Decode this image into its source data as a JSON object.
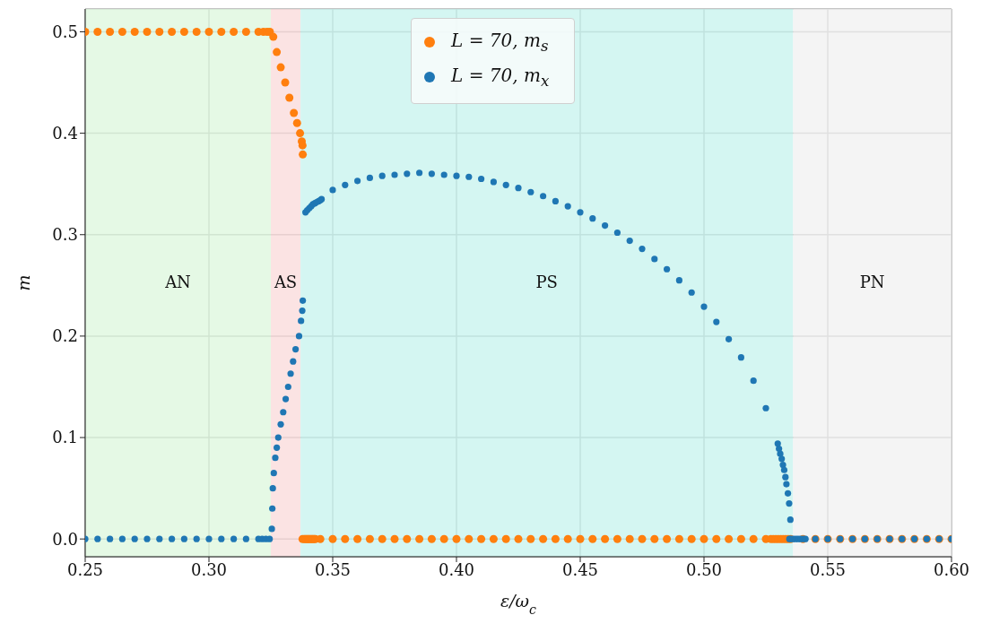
{
  "chart_data": {
    "type": "scatter",
    "xlabel": "ε/ω$_{c}$",
    "ylabel": "m",
    "xlim": [
      0.25,
      0.6
    ],
    "ylim": [
      -0.0175,
      0.5225
    ],
    "xticks": [
      {
        "value": 0.25,
        "label": "0.25"
      },
      {
        "value": 0.3,
        "label": "0.30"
      },
      {
        "value": 0.35,
        "label": "0.35"
      },
      {
        "value": 0.4,
        "label": "0.40"
      },
      {
        "value": 0.45,
        "label": "0.45"
      },
      {
        "value": 0.5,
        "label": "0.50"
      },
      {
        "value": 0.55,
        "label": "0.55"
      },
      {
        "value": 0.6,
        "label": "0.60"
      }
    ],
    "yticks": [
      {
        "value": 0,
        "label": "0.0"
      },
      {
        "value": 0.1,
        "label": "0.1"
      },
      {
        "value": 0.2,
        "label": "0.2"
      },
      {
        "value": 0.3,
        "label": "0.3"
      },
      {
        "value": 0.4,
        "label": "0.4"
      },
      {
        "value": 0.5,
        "label": "0.5"
      }
    ],
    "grid": true,
    "legend": "top",
    "marker": "circle",
    "bands": [
      {
        "axis": "x",
        "from": 0.25,
        "to": 0.325,
        "label": "AN",
        "color": "#dcf7dc"
      },
      {
        "axis": "x",
        "from": 0.325,
        "to": 0.337,
        "label": "AS",
        "color": "#f9d9d9"
      },
      {
        "axis": "x",
        "from": 0.337,
        "to": 0.536,
        "label": "PS",
        "color": "#c6f3ee"
      },
      {
        "axis": "x",
        "from": 0.536,
        "to": 0.6,
        "label": "PN",
        "color": "#f0f0f0"
      }
    ],
    "series": [
      {
        "name": "L = 70, m$_{s}$",
        "color": "#ff7f0e",
        "x": [
          0.25,
          0.255,
          0.26,
          0.265,
          0.27,
          0.275,
          0.28,
          0.285,
          0.29,
          0.295,
          0.3,
          0.305,
          0.31,
          0.315,
          0.32,
          0.322,
          0.3235,
          0.3246,
          0.326,
          0.3274,
          0.329,
          0.3308,
          0.3325,
          0.3343,
          0.3356,
          0.3368,
          0.3375,
          0.3378,
          0.3379,
          0.3378,
          0.3385,
          0.339,
          0.3395,
          0.34,
          0.3405,
          0.341,
          0.3415,
          0.342,
          0.3425,
          0.343,
          0.345,
          0.35,
          0.355,
          0.36,
          0.365,
          0.37,
          0.375,
          0.38,
          0.385,
          0.39,
          0.395,
          0.4,
          0.405,
          0.41,
          0.415,
          0.42,
          0.425,
          0.43,
          0.435,
          0.44,
          0.445,
          0.45,
          0.455,
          0.46,
          0.465,
          0.47,
          0.475,
          0.48,
          0.485,
          0.49,
          0.495,
          0.5,
          0.505,
          0.51,
          0.515,
          0.52,
          0.525,
          0.527,
          0.528,
          0.529,
          0.53,
          0.531,
          0.532,
          0.533,
          0.534,
          0.535,
          0.54,
          0.545,
          0.55,
          0.555,
          0.56,
          0.565,
          0.57,
          0.575,
          0.58,
          0.585,
          0.59,
          0.595,
          0.6
        ],
        "values": [
          0.5,
          0.5,
          0.5,
          0.5,
          0.5,
          0.5,
          0.5,
          0.5,
          0.5,
          0.5,
          0.5,
          0.5,
          0.5,
          0.5,
          0.5,
          0.5,
          0.5,
          0.5,
          0.495,
          0.48,
          0.465,
          0.45,
          0.435,
          0.42,
          0.41,
          0.4,
          0.392,
          0.388,
          0.379,
          0,
          0,
          0,
          0,
          0,
          0,
          0,
          0,
          0,
          0,
          0,
          0,
          0,
          0,
          0,
          0,
          0,
          0,
          0,
          0,
          0,
          0,
          0,
          0,
          0,
          0,
          0,
          0,
          0,
          0,
          0,
          0,
          0,
          0,
          0,
          0,
          0,
          0,
          0,
          0,
          0,
          0,
          0,
          0,
          0,
          0,
          0,
          0,
          0,
          0,
          0,
          0,
          0,
          0,
          0,
          0,
          0,
          0,
          0,
          0,
          0,
          0,
          0,
          0,
          0,
          0,
          0,
          0,
          0,
          0
        ]
      },
      {
        "name": "L = 70, m$_{x}$",
        "color": "#1f77b4",
        "x": [
          0.25,
          0.255,
          0.26,
          0.265,
          0.27,
          0.275,
          0.28,
          0.285,
          0.29,
          0.295,
          0.3,
          0.305,
          0.31,
          0.315,
          0.32,
          0.3215,
          0.323,
          0.3245,
          0.3254,
          0.3256,
          0.3258,
          0.3262,
          0.3268,
          0.3274,
          0.328,
          0.329,
          0.33,
          0.331,
          0.332,
          0.333,
          0.334,
          0.335,
          0.3364,
          0.3372,
          0.3377,
          0.3379,
          0.339,
          0.3397,
          0.3405,
          0.3413,
          0.342,
          0.3428,
          0.3435,
          0.3443,
          0.345,
          0.3455,
          0.35,
          0.355,
          0.36,
          0.365,
          0.37,
          0.375,
          0.38,
          0.385,
          0.39,
          0.395,
          0.4,
          0.405,
          0.41,
          0.415,
          0.42,
          0.425,
          0.43,
          0.435,
          0.44,
          0.445,
          0.45,
          0.455,
          0.46,
          0.465,
          0.47,
          0.475,
          0.48,
          0.485,
          0.49,
          0.495,
          0.5,
          0.505,
          0.51,
          0.515,
          0.52,
          0.525,
          0.5298,
          0.5303,
          0.5308,
          0.5314,
          0.5319,
          0.5324,
          0.5329,
          0.5333,
          0.5339,
          0.5344,
          0.5349,
          0.5345,
          0.535,
          0.536,
          0.537,
          0.538,
          0.539,
          0.54,
          0.541,
          0.545,
          0.55,
          0.555,
          0.56,
          0.565,
          0.57,
          0.575,
          0.58,
          0.585,
          0.59,
          0.595,
          0.6
        ],
        "values": [
          0,
          0,
          0,
          0,
          0,
          0,
          0,
          0,
          0,
          0,
          0,
          0,
          0,
          0,
          0,
          0,
          0,
          0,
          0.01,
          0.03,
          0.05,
          0.065,
          0.08,
          0.09,
          0.1,
          0.113,
          0.125,
          0.138,
          0.15,
          0.163,
          0.175,
          0.187,
          0.2,
          0.215,
          0.225,
          0.235,
          0.322,
          0.324,
          0.326,
          0.328,
          0.33,
          0.331,
          0.332,
          0.333,
          0.334,
          0.335,
          0.344,
          0.349,
          0.353,
          0.356,
          0.358,
          0.359,
          0.36,
          0.361,
          0.36,
          0.359,
          0.358,
          0.357,
          0.355,
          0.352,
          0.349,
          0.346,
          0.342,
          0.338,
          0.333,
          0.328,
          0.322,
          0.316,
          0.309,
          0.302,
          0.294,
          0.286,
          0.276,
          0.266,
          0.255,
          0.243,
          0.229,
          0.214,
          0.197,
          0.179,
          0.156,
          0.129,
          0.094,
          0.089,
          0.084,
          0.079,
          0.073,
          0.068,
          0.061,
          0.054,
          0.045,
          0.035,
          0.019,
          0,
          0,
          0,
          0,
          0,
          0,
          0,
          0,
          0,
          0,
          0,
          0,
          0,
          0,
          0,
          0,
          0,
          0,
          0,
          0
        ]
      }
    ]
  }
}
